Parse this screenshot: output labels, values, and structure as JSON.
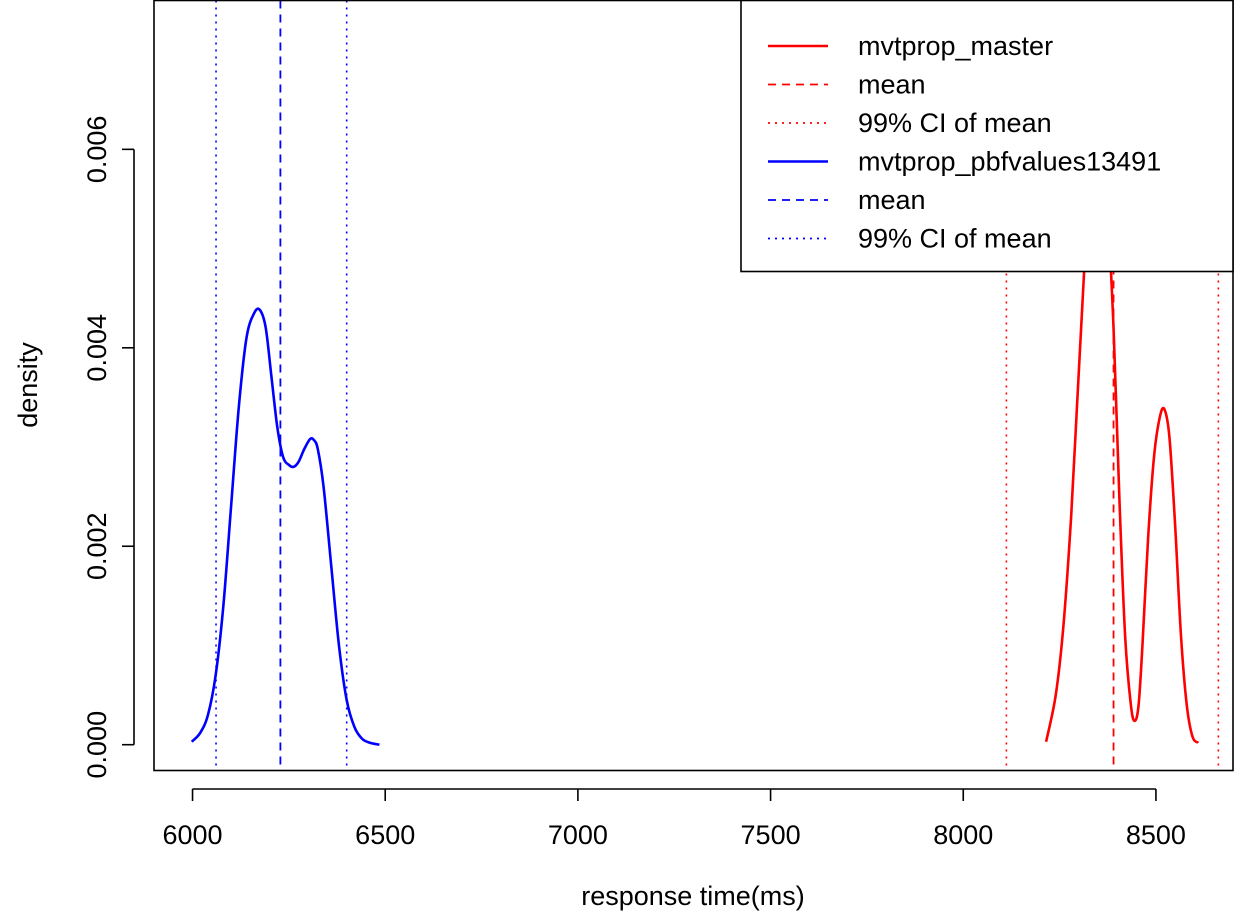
{
  "chart_data": {
    "type": "line",
    "title": "",
    "xlabel": "response time(ms)",
    "ylabel": "density",
    "xlim": [
      5900,
      8700
    ],
    "ylim": [
      -0.00026,
      0.0075
    ],
    "x_ticks": [
      6000,
      6500,
      7000,
      7500,
      8000,
      8500
    ],
    "x_tick_labels": [
      "6000",
      "6500",
      "7000",
      "7500",
      "8000",
      "8500"
    ],
    "y_ticks": [
      0.0,
      0.002,
      0.004,
      0.006
    ],
    "y_tick_labels": [
      "0.000",
      "0.002",
      "0.004",
      "0.006"
    ],
    "grid": false,
    "legend_position": "top-right",
    "legend": [
      {
        "label": "mvtprop_master",
        "color": "#ff0000",
        "style": "solid"
      },
      {
        "label": "mean",
        "color": "#ff0000",
        "style": "dashed"
      },
      {
        "label": "99% CI  of mean",
        "color": "#ff0000",
        "style": "dotted"
      },
      {
        "label": "mvtprop_pbfvalues13491",
        "color": "#0000ff",
        "style": "solid"
      },
      {
        "label": "mean",
        "color": "#0000ff",
        "style": "dashed"
      },
      {
        "label": "99% CI  of mean",
        "color": "#0000ff",
        "style": "dotted"
      }
    ],
    "series": [
      {
        "name": "mvtprop_master",
        "color": "#ff0000",
        "x": [
          8215,
          8240,
          8260,
          8280,
          8295,
          8310,
          8320,
          8330,
          8345,
          8360,
          8375,
          8390,
          8405,
          8420,
          8435,
          8445,
          8455,
          8465,
          8480,
          8495,
          8510,
          8522,
          8535,
          8550,
          8565,
          8580,
          8595,
          8610
        ],
        "y": [
          3e-05,
          0.0005,
          0.0012,
          0.0023,
          0.0034,
          0.0045,
          0.0052,
          0.0056,
          0.0058,
          0.0057,
          0.0053,
          0.0042,
          0.0025,
          0.0011,
          0.0004,
          0.00024,
          0.0004,
          0.001,
          0.0021,
          0.0029,
          0.0033,
          0.00338,
          0.0031,
          0.0022,
          0.0011,
          0.0004,
          8e-05,
          2e-05
        ],
        "mean": 8390,
        "ci99": [
          8112,
          8662
        ]
      },
      {
        "name": "mvtprop_pbfvalues13491",
        "color": "#0000ff",
        "x": [
          5998,
          6020,
          6040,
          6060,
          6080,
          6100,
          6120,
          6140,
          6160,
          6175,
          6190,
          6205,
          6220,
          6235,
          6250,
          6262,
          6275,
          6290,
          6305,
          6315,
          6325,
          6340,
          6360,
          6380,
          6400,
          6420,
          6440,
          6460,
          6485
        ],
        "y": [
          3e-05,
          0.00012,
          0.0003,
          0.0007,
          0.0014,
          0.0024,
          0.0034,
          0.0041,
          0.00435,
          0.00438,
          0.0042,
          0.0037,
          0.0032,
          0.0029,
          0.00282,
          0.0028,
          0.00285,
          0.00298,
          0.00308,
          0.00307,
          0.00298,
          0.0026,
          0.0018,
          0.001,
          0.00045,
          0.00018,
          6e-05,
          2e-05,
          0.0
        ],
        "mean": 6228,
        "ci99": [
          6061,
          6400
        ]
      }
    ]
  }
}
